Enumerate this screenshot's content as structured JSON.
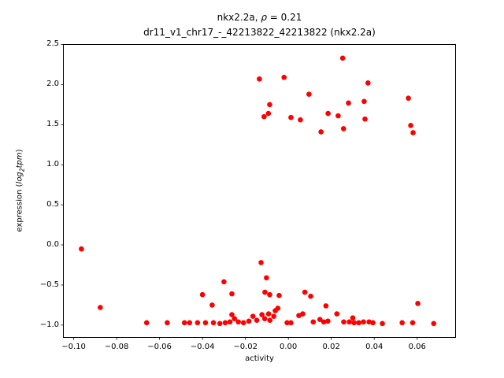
{
  "figure": {
    "title_prefix": "nkx2.2a, ",
    "title_rho": "ρ",
    "title_rho_value": " = 0.21",
    "subtitle": "dr11_v1_chr17_-_42213822_42213822 (nkx2.2a)"
  },
  "axes": {
    "xlabel": "activity",
    "ylabel_prefix": "expression (",
    "ylabel_log": "log",
    "ylabel_sub": "2",
    "ylabel_tpm": "tpm",
    "ylabel_suffix": ")"
  },
  "chart_data": {
    "type": "scatter",
    "title": "nkx2.2a, ρ = 0.21",
    "subtitle": "dr11_v1_chr17_-_42213822_42213822 (nkx2.2a)",
    "xlabel": "activity",
    "ylabel": "expression (log2 tpm)",
    "marker_color": "#ff0000",
    "marker_diameter_px": 6.6,
    "grid": false,
    "legend_position": "none",
    "xlim": [
      -0.1046,
      0.0777
    ],
    "ylim": [
      -1.149,
      2.495
    ],
    "xtick_values": [
      -0.1,
      -0.08,
      -0.06,
      -0.04,
      -0.02,
      0.0,
      0.02,
      0.04,
      0.06
    ],
    "xtick_labels": [
      "−0.10",
      "−0.08",
      "−0.06",
      "−0.04",
      "−0.02",
      "0.00",
      "0.02",
      "0.04",
      "0.06"
    ],
    "ytick_values": [
      2.5,
      2.0,
      1.5,
      1.0,
      0.5,
      0.0,
      -0.5,
      -1.0
    ],
    "ytick_labels": [
      "2.5",
      "2.0",
      "1.5",
      "1.0",
      "0.5",
      "0.0",
      "−0.5",
      "−1.0"
    ],
    "points": [
      [
        -0.0135,
        2.07
      ],
      [
        -0.002,
        2.09
      ],
      [
        0.0253,
        2.33
      ],
      [
        0.0371,
        2.02
      ],
      [
        0.0096,
        1.88
      ],
      [
        -0.0087,
        1.75
      ],
      [
        0.028,
        1.77
      ],
      [
        0.0353,
        1.79
      ],
      [
        -0.0113,
        1.6
      ],
      [
        -0.0093,
        1.64
      ],
      [
        0.0012,
        1.59
      ],
      [
        0.0056,
        1.56
      ],
      [
        0.0185,
        1.64
      ],
      [
        0.0232,
        1.61
      ],
      [
        0.0357,
        1.57
      ],
      [
        0.0152,
        1.41
      ],
      [
        0.0257,
        1.45
      ],
      [
        0.0559,
        1.83
      ],
      [
        0.057,
        1.49
      ],
      [
        0.0581,
        1.4
      ],
      [
        -0.0964,
        -0.05
      ],
      [
        -0.0876,
        -0.78
      ],
      [
        -0.0127,
        -0.22
      ],
      [
        -0.0102,
        -0.41
      ],
      [
        -0.03,
        -0.46
      ],
      [
        -0.04,
        -0.62
      ],
      [
        -0.0263,
        -0.61
      ],
      [
        -0.0109,
        -0.59
      ],
      [
        -0.0087,
        -0.62
      ],
      [
        -0.0043,
        -0.63
      ],
      [
        -0.0355,
        -0.75
      ],
      [
        -0.0061,
        -0.82
      ],
      [
        -0.0049,
        -0.79
      ],
      [
        -0.0263,
        -0.87
      ],
      [
        0.0077,
        -0.59
      ],
      [
        0.0104,
        -0.64
      ],
      [
        0.0175,
        -0.76
      ],
      [
        0.0226,
        -0.86
      ],
      [
        0.0049,
        -0.88
      ],
      [
        0.0067,
        -0.86
      ],
      [
        0.0603,
        -0.73
      ],
      [
        -0.066,
        -0.97
      ],
      [
        -0.0564,
        -0.97
      ],
      [
        -0.0484,
        -0.97
      ],
      [
        -0.046,
        -0.97
      ],
      [
        -0.0423,
        -0.97
      ],
      [
        -0.0386,
        -0.97
      ],
      [
        -0.0349,
        -0.97
      ],
      [
        -0.0319,
        -0.98
      ],
      [
        -0.0294,
        -0.97
      ],
      [
        -0.0272,
        -0.96
      ],
      [
        -0.0251,
        -0.92
      ],
      [
        -0.0233,
        -0.96
      ],
      [
        -0.0209,
        -0.97
      ],
      [
        -0.0184,
        -0.95
      ],
      [
        -0.0165,
        -0.89
      ],
      [
        -0.0147,
        -0.94
      ],
      [
        -0.0123,
        -0.87
      ],
      [
        -0.011,
        -0.92
      ],
      [
        -0.0092,
        -0.86
      ],
      [
        -0.0086,
        -0.94
      ],
      [
        -0.0068,
        -0.89
      ],
      [
        -0.0006,
        -0.97
      ],
      [
        0.0012,
        -0.97
      ],
      [
        0.0116,
        -0.96
      ],
      [
        0.0147,
        -0.93
      ],
      [
        0.0165,
        -0.96
      ],
      [
        0.0184,
        -0.95
      ],
      [
        0.0258,
        -0.96
      ],
      [
        0.0284,
        -0.96
      ],
      [
        0.03,
        -0.91
      ],
      [
        0.0306,
        -0.97
      ],
      [
        0.0328,
        -0.97
      ],
      [
        0.035,
        -0.96
      ],
      [
        0.0376,
        -0.96
      ],
      [
        0.0394,
        -0.97
      ],
      [
        0.0438,
        -0.98
      ],
      [
        0.053,
        -0.97
      ],
      [
        0.0579,
        -0.97
      ],
      [
        0.0677,
        -0.98
      ]
    ]
  }
}
